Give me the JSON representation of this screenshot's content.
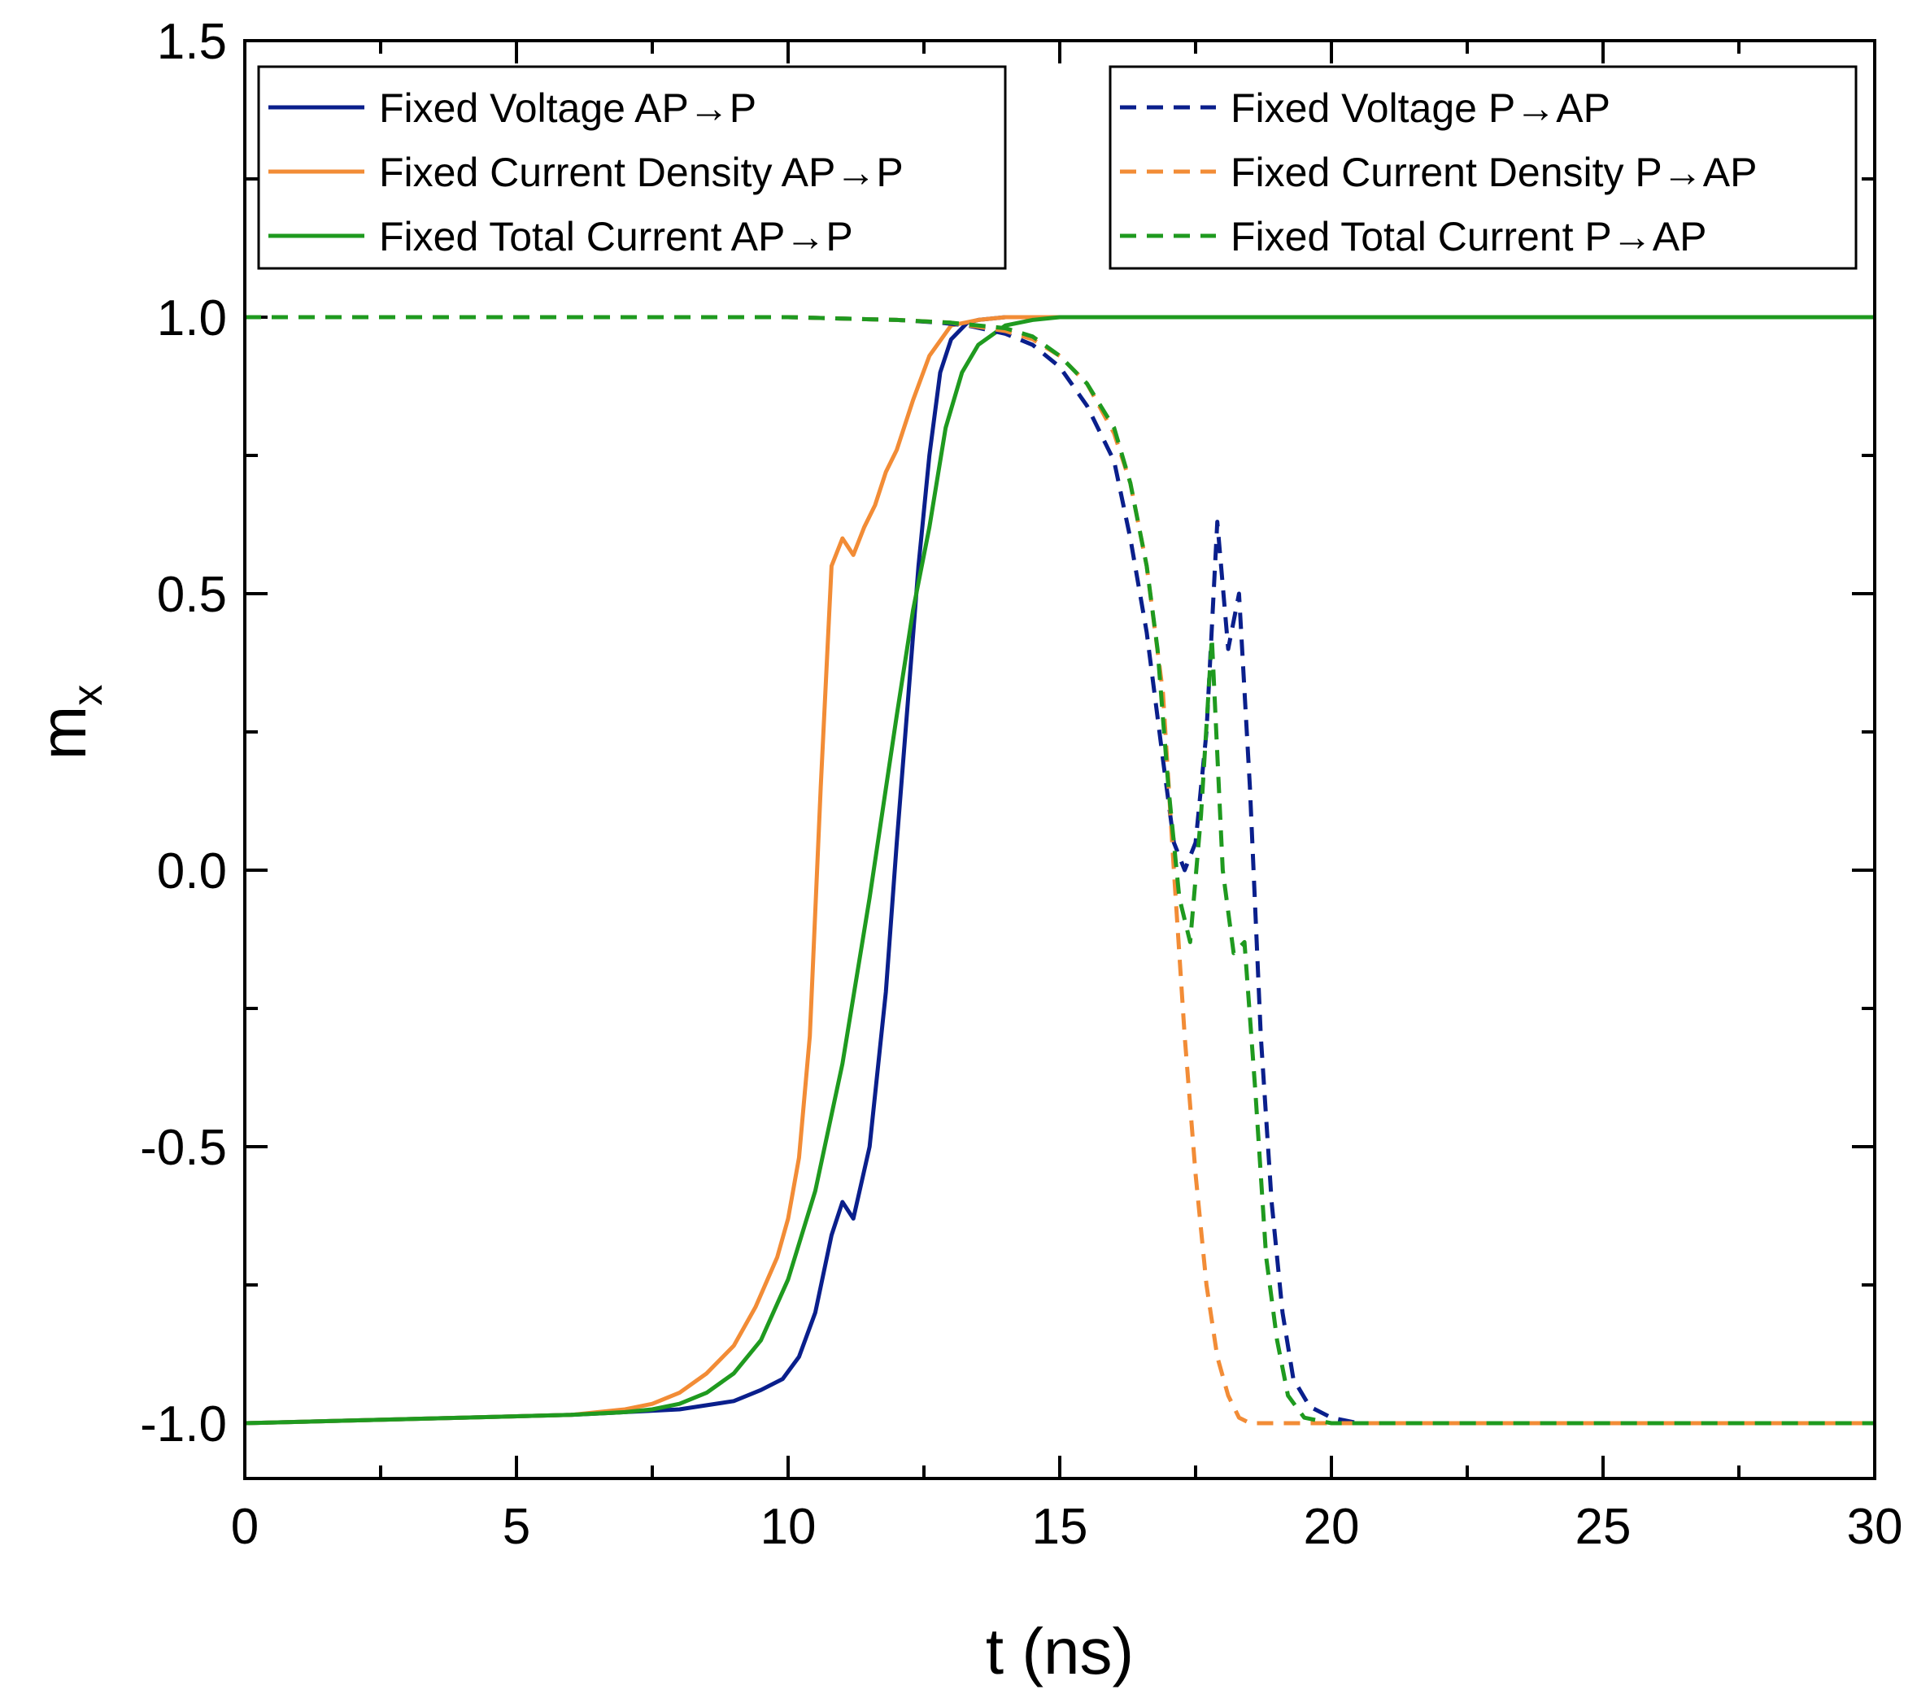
{
  "chart_data": {
    "type": "line",
    "title": "",
    "xlabel": "t (ns)",
    "ylabel_main": "m",
    "ylabel_sub": "x",
    "xlim": [
      0,
      30
    ],
    "ylim": [
      -1.1,
      1.5
    ],
    "x_ticks": [
      "0",
      "5",
      "10",
      "15",
      "20",
      "25",
      "30"
    ],
    "x_tick_values": [
      0,
      5,
      10,
      15,
      20,
      25,
      30
    ],
    "y_ticks": [
      "-1.0",
      "-0.5",
      "0.0",
      "0.5",
      "1.0",
      "1.5"
    ],
    "y_tick_values": [
      -1.0,
      -0.5,
      0.0,
      0.5,
      1.0,
      1.5
    ],
    "grid": false,
    "legends": [
      {
        "placement": "top-left",
        "entries": [
          0,
          1,
          2
        ]
      },
      {
        "placement": "top-right",
        "entries": [
          3,
          4,
          5
        ]
      }
    ],
    "colors": {
      "navy": "#0a1f8c",
      "orange": "#f28c36",
      "green": "#1f9a1f"
    },
    "series": [
      {
        "name": "Fixed Voltage AP→P",
        "color": "#0a1f8c",
        "dash": "solid",
        "x": [
          0,
          2,
          4,
          6,
          7,
          8,
          9,
          9.5,
          9.9,
          10.2,
          10.5,
          10.8,
          11.0,
          11.2,
          11.5,
          11.8,
          12.0,
          12.2,
          12.4,
          12.6,
          12.8,
          13.0,
          13.3,
          13.5,
          14,
          15,
          20,
          25,
          30
        ],
        "y": [
          -1.0,
          -0.995,
          -0.99,
          -0.985,
          -0.98,
          -0.975,
          -0.96,
          -0.94,
          -0.92,
          -0.88,
          -0.8,
          -0.66,
          -0.6,
          -0.63,
          -0.5,
          -0.22,
          0.05,
          0.3,
          0.55,
          0.75,
          0.9,
          0.96,
          0.99,
          0.995,
          1.0,
          1.0,
          1.0,
          1.0,
          1.0
        ]
      },
      {
        "name": "Fixed Current Density AP→P",
        "color": "#f28c36",
        "dash": "solid",
        "x": [
          0,
          2,
          4,
          6,
          7,
          7.5,
          8,
          8.5,
          9,
          9.4,
          9.8,
          10.0,
          10.2,
          10.4,
          10.6,
          10.8,
          11.0,
          11.2,
          11.4,
          11.6,
          11.8,
          12.0,
          12.3,
          12.6,
          13.0,
          13.5,
          14,
          15,
          20,
          25,
          30
        ],
        "y": [
          -1.0,
          -0.995,
          -0.99,
          -0.985,
          -0.975,
          -0.965,
          -0.945,
          -0.91,
          -0.86,
          -0.79,
          -0.7,
          -0.63,
          -0.52,
          -0.3,
          0.15,
          0.55,
          0.6,
          0.57,
          0.62,
          0.66,
          0.72,
          0.76,
          0.85,
          0.93,
          0.985,
          0.995,
          1.0,
          1.0,
          1.0,
          1.0,
          1.0
        ]
      },
      {
        "name": "Fixed Total Current AP→P",
        "color": "#1f9a1f",
        "dash": "solid",
        "x": [
          0,
          2,
          4,
          6,
          7,
          7.5,
          8,
          8.5,
          9,
          9.5,
          10,
          10.5,
          11,
          11.5,
          12,
          12.3,
          12.6,
          12.9,
          13.2,
          13.5,
          14,
          14.5,
          15,
          20,
          25,
          30
        ],
        "y": [
          -1.0,
          -0.995,
          -0.99,
          -0.985,
          -0.98,
          -0.975,
          -0.965,
          -0.945,
          -0.91,
          -0.85,
          -0.74,
          -0.58,
          -0.35,
          -0.05,
          0.28,
          0.47,
          0.62,
          0.8,
          0.9,
          0.95,
          0.985,
          0.995,
          1.0,
          1.0,
          1.0,
          1.0
        ]
      },
      {
        "name": "Fixed Voltage P→AP",
        "color": "#0a1f8c",
        "dash": "dashed",
        "x": [
          0,
          5,
          10,
          12,
          12.8,
          13.3,
          14,
          14.5,
          15,
          15.5,
          16,
          16.3,
          16.6,
          16.9,
          17.1,
          17.3,
          17.5,
          17.7,
          17.9,
          18.1,
          18.3,
          18.5,
          18.7,
          18.9,
          19.1,
          19.3,
          19.6,
          20,
          20.5,
          25,
          30
        ],
        "y": [
          1.0,
          1.0,
          1.0,
          0.995,
          0.99,
          0.985,
          0.97,
          0.95,
          0.91,
          0.84,
          0.74,
          0.6,
          0.43,
          0.2,
          0.05,
          0.0,
          0.05,
          0.25,
          0.63,
          0.4,
          0.5,
          0.15,
          -0.3,
          -0.6,
          -0.8,
          -0.92,
          -0.97,
          -0.99,
          -1.0,
          -1.0,
          -1.0
        ]
      },
      {
        "name": "Fixed Current Density P→AP",
        "color": "#f28c36",
        "dash": "dashed",
        "x": [
          0,
          5,
          10,
          12,
          13,
          14,
          14.5,
          15,
          15.5,
          16,
          16.3,
          16.6,
          16.9,
          17.1,
          17.3,
          17.5,
          17.7,
          17.9,
          18.1,
          18.3,
          18.5,
          18.7,
          19,
          20,
          25,
          30
        ],
        "y": [
          1.0,
          1.0,
          1.0,
          0.995,
          0.99,
          0.975,
          0.96,
          0.93,
          0.88,
          0.79,
          0.7,
          0.55,
          0.32,
          0.0,
          -0.3,
          -0.55,
          -0.75,
          -0.88,
          -0.95,
          -0.99,
          -1.0,
          -1.0,
          -1.0,
          -1.0,
          -1.0,
          -1.0
        ]
      },
      {
        "name": "Fixed Total Current P→AP",
        "color": "#1f9a1f",
        "dash": "dashed",
        "x": [
          0,
          5,
          10,
          12,
          13,
          14,
          14.5,
          15,
          15.5,
          16,
          16.3,
          16.6,
          16.8,
          17.0,
          17.2,
          17.4,
          17.6,
          17.8,
          18.0,
          18.2,
          18.4,
          18.6,
          18.8,
          19.0,
          19.2,
          19.5,
          20,
          25,
          30
        ],
        "y": [
          1.0,
          1.0,
          1.0,
          0.995,
          0.99,
          0.98,
          0.965,
          0.93,
          0.88,
          0.8,
          0.7,
          0.55,
          0.4,
          0.15,
          -0.05,
          -0.13,
          0.1,
          0.42,
          0.0,
          -0.15,
          -0.13,
          -0.4,
          -0.7,
          -0.85,
          -0.95,
          -0.99,
          -1.0,
          -1.0,
          -1.0
        ]
      }
    ]
  }
}
